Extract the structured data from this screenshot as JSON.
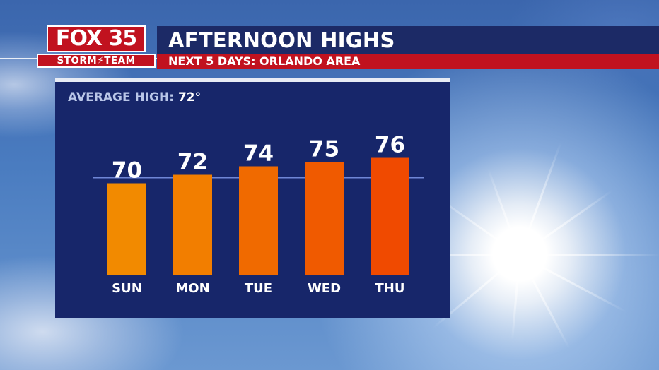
{
  "header": {
    "title": "AFTERNOON HIGHS",
    "subtitle": "NEXT 5 DAYS: ORLANDO AREA",
    "logo_station": "FOX 35",
    "logo_team": "STORM⚡TEAM"
  },
  "colors": {
    "title_bar": "#1c2a66",
    "subtitle_bar": "#c1121f",
    "panel": "#17266a",
    "average_line": "#6f86d6"
  },
  "chart_data": {
    "type": "bar",
    "categories": [
      "SUN",
      "MON",
      "TUE",
      "WED",
      "THU"
    ],
    "values": [
      70,
      72,
      74,
      75,
      76
    ],
    "bar_colors": [
      "#f28a00",
      "#f27e00",
      "#f06a00",
      "#f05a00",
      "#f04a00"
    ],
    "reference_line": {
      "label": "AVERAGE HIGH:",
      "value": 72,
      "display": "72°"
    },
    "title": "AFTERNOON HIGHS",
    "xlabel": "",
    "ylabel": "",
    "grid": false
  }
}
